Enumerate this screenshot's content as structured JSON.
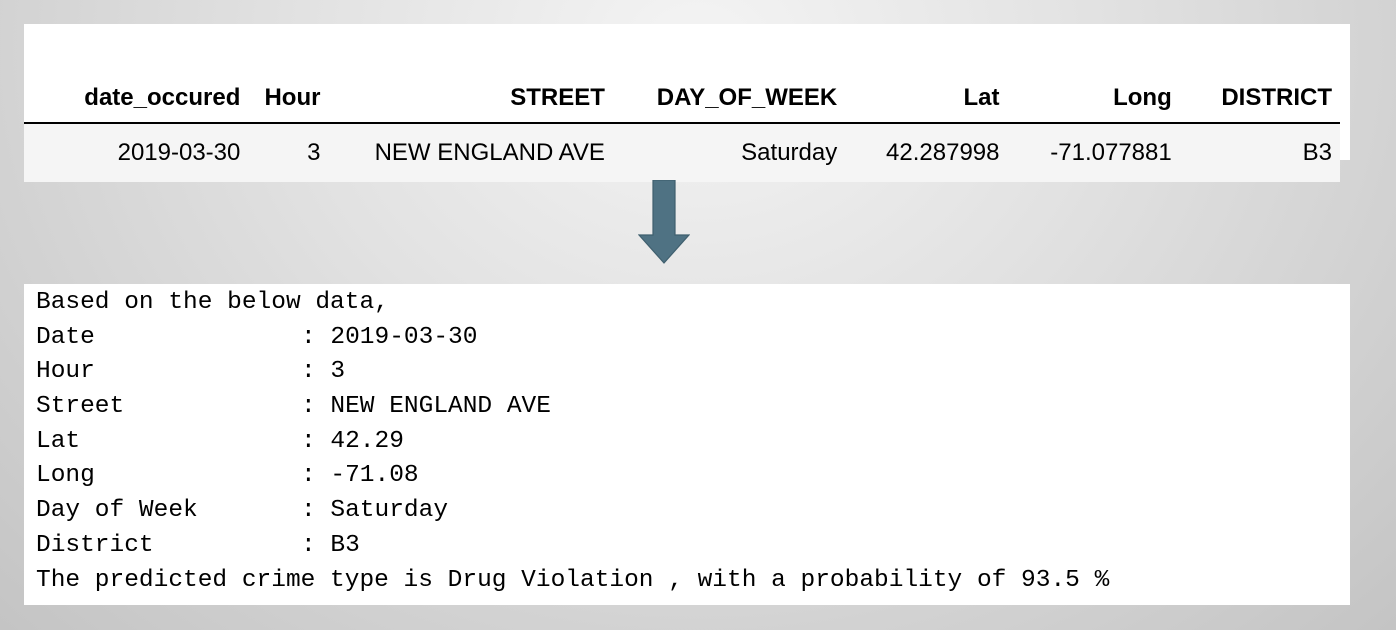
{
  "dataframe": {
    "columns": [
      "date_occured",
      "Hour",
      "STREET",
      "DAY_OF_WEEK",
      "Lat",
      "Long",
      "DISTRICT"
    ],
    "rows": [
      [
        "2019-03-30",
        "3",
        "NEW ENGLAND AVE",
        "Saturday",
        "42.287998",
        "-71.077881",
        "B3"
      ]
    ]
  },
  "arrow": {
    "icon": "down-arrow-icon",
    "color": "#4f7283"
  },
  "output": {
    "intro": "Based on the below data,",
    "fields": [
      {
        "key": "Date",
        "value": ": 2019-03-30"
      },
      {
        "key": "Hour",
        "value": ": 3"
      },
      {
        "key": "Street",
        "value": ": NEW ENGLAND AVE"
      },
      {
        "key": "Lat",
        "value": ": 42.29"
      },
      {
        "key": "Long",
        "value": ": -71.08"
      },
      {
        "key": "Day of Week",
        "value": ": Saturday"
      },
      {
        "key": "District",
        "value": ": B3"
      }
    ],
    "result": "The predicted crime type is Drug Violation , with a probability of 93.5 %"
  }
}
